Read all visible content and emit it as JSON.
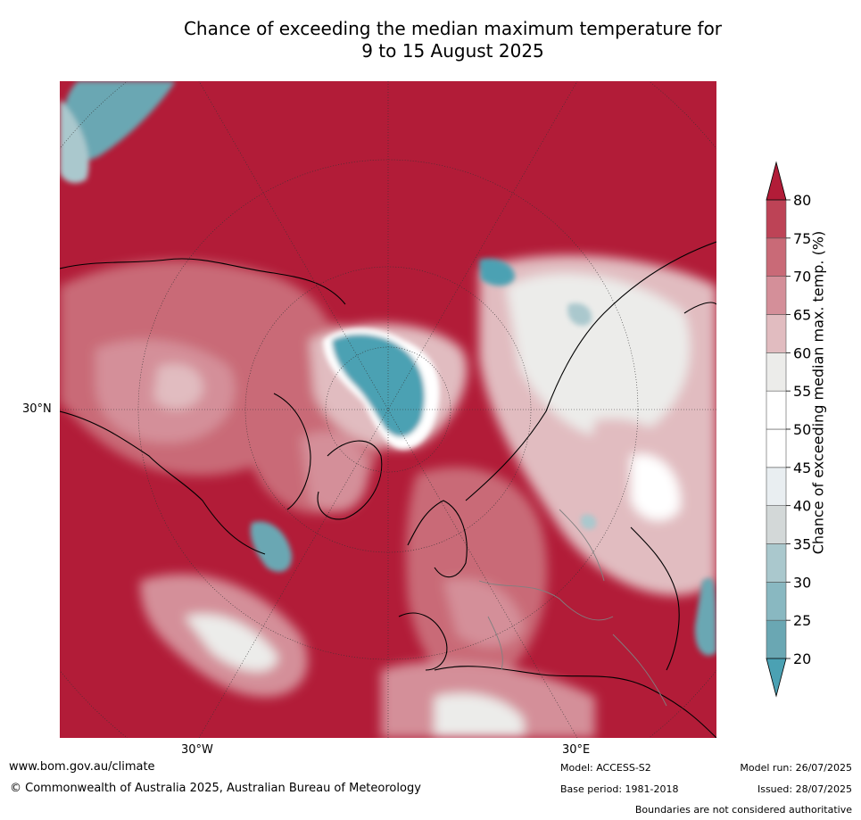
{
  "title": {
    "line1": "Chance of exceeding the median maximum temperature for",
    "line2": "9 to 15 August 2025"
  },
  "axes": {
    "lat_label": "30°N",
    "lon_left": "30°W",
    "lon_right": "30°E"
  },
  "colorbar": {
    "label": "Chance of exceeding median max. temp. (%)",
    "ticks": [
      "20",
      "25",
      "30",
      "35",
      "40",
      "45",
      "50",
      "55",
      "60",
      "65",
      "70",
      "75",
      "80"
    ],
    "colors": [
      "#6aa7b3",
      "#89b8c1",
      "#aac8cd",
      "#d3d8d8",
      "#e9eef1",
      "#ffffff",
      "#ffffff",
      "#ececea",
      "#e1bcc0",
      "#d48f99",
      "#c96a77",
      "#bd4356",
      "#b21c38"
    ],
    "under_color": "#4ba1b3",
    "over_color": "#b21c38"
  },
  "map": {
    "projection": "north polar stereographic",
    "dominant_color": "#b21c38"
  },
  "footer": {
    "website": "www.bom.gov.au/climate",
    "copyright": "© Commonwealth of Australia 2025, Australian Bureau of Meteorology",
    "model": "Model: ACCESS-S2",
    "base_period": "Base period: 1981-2018",
    "model_run": "Model run: 26/07/2025",
    "issued": "Issued: 28/07/2025",
    "disclaimer": "Boundaries are not considered authoritative"
  }
}
